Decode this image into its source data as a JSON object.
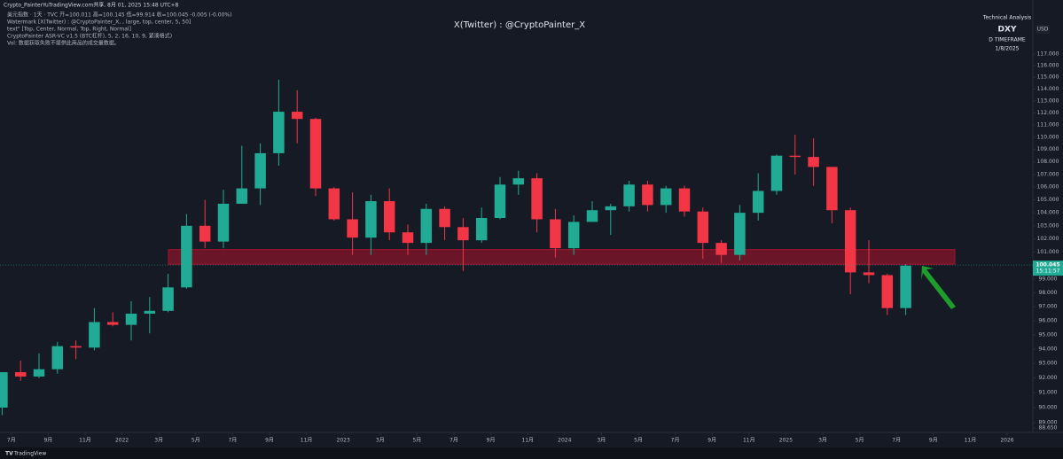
{
  "chart_data": {
    "type": "candlestick",
    "header": "Crypto_PainterYuTradingView.com共享, 8月 01, 2025 15:48 UTC+8",
    "legend_lines": [
      "美元指数 · 1天 · TVC  开=100.011 高=100.145 低=99.914 收=100.045 -0.005 (-0.00%)",
      "Watermark [X(Twitter) : @CryptoPainter_X, , large, top, center, 5, 50]",
      "text\" [Top, Center, Normal, Top, Right, Normal]",
      "CryptoPainter ASR-VC v1.5 (BTC杠杆), 5, 2, 16, 10, 9, 紧凑格式)",
      "Vol: 数据获取失败不提供此商品的成交量数据。"
    ],
    "watermark": "X(Twitter) : @CryptoPainter_X",
    "info_box": [
      "Technical Analysis",
      "DXY",
      "D TIMEFRAME",
      "1/8/2025"
    ],
    "currency": "USD",
    "last_price": {
      "value": 100.045,
      "label": "100.045"
    },
    "countdown": "15:11:57",
    "brand": "TradingView",
    "up_color": "#22ab94",
    "down_color": "#f23645",
    "zone": {
      "from": 100.1,
      "to": 101.2,
      "color": "#a3142c"
    },
    "log_scale": true,
    "grid": false,
    "categories": [
      "2021-06",
      "2021-07",
      "2021-08",
      "2021-09",
      "2021-10",
      "2021-11",
      "2021-12",
      "2022-01",
      "2022-02",
      "2022-03",
      "2022-04",
      "2022-05",
      "2022-06",
      "2022-07",
      "2022-08",
      "2022-09",
      "2022-10",
      "2022-11",
      "2022-12",
      "2023-01",
      "2023-02",
      "2023-03",
      "2023-04",
      "2023-05",
      "2023-06",
      "2023-07",
      "2023-08",
      "2023-09",
      "2023-10",
      "2023-11",
      "2023-12",
      "2024-01",
      "2024-02",
      "2024-03",
      "2024-04",
      "2024-05",
      "2024-06",
      "2024-07",
      "2024-08",
      "2024-09",
      "2024-10",
      "2024-11",
      "2024-12",
      "2025-01",
      "2025-02",
      "2025-03",
      "2025-04",
      "2025-05",
      "2025-06",
      "2025-07"
    ],
    "open": [
      90.0,
      92.4,
      92.1,
      92.6,
      94.2,
      94.1,
      95.9,
      95.7,
      96.5,
      96.7,
      98.4,
      103.0,
      101.8,
      104.7,
      105.9,
      108.7,
      112.1,
      111.5,
      105.9,
      103.5,
      102.1,
      104.9,
      102.5,
      101.7,
      104.3,
      102.9,
      101.9,
      103.6,
      106.2,
      106.7,
      103.5,
      101.3,
      103.3,
      104.2,
      104.5,
      106.2,
      104.6,
      105.9,
      104.1,
      101.7,
      100.8,
      104.0,
      105.7,
      108.5,
      108.4,
      107.6,
      104.2,
      99.5,
      99.3,
      96.9
    ],
    "high": [
      92.4,
      93.2,
      93.7,
      94.5,
      94.6,
      96.9,
      96.6,
      97.4,
      97.7,
      99.4,
      103.9,
      105.0,
      105.8,
      109.3,
      109.5,
      114.8,
      113.9,
      111.6,
      106.0,
      105.6,
      105.4,
      105.9,
      103.1,
      104.7,
      104.5,
      103.6,
      104.4,
      106.8,
      107.3,
      107.1,
      104.3,
      103.8,
      104.9,
      104.7,
      106.5,
      106.5,
      106.1,
      106.1,
      104.4,
      101.9,
      104.6,
      107.1,
      108.6,
      110.2,
      109.9,
      107.6,
      104.4,
      101.9,
      99.4,
      100.1
    ],
    "low": [
      89.5,
      91.8,
      92.0,
      92.3,
      93.3,
      93.9,
      95.6,
      94.6,
      95.1,
      96.6,
      98.3,
      101.3,
      101.3,
      104.7,
      104.6,
      107.7,
      109.5,
      105.3,
      103.4,
      100.8,
      100.8,
      101.9,
      100.8,
      100.8,
      101.9,
      99.6,
      101.7,
      103.5,
      105.4,
      102.5,
      100.6,
      100.8,
      103.3,
      102.3,
      104.1,
      104.1,
      104.0,
      103.7,
      100.5,
      100.2,
      100.4,
      103.4,
      105.4,
      107.0,
      106.1,
      103.2,
      97.9,
      98.7,
      96.4,
      96.4
    ],
    "close": [
      92.4,
      92.1,
      92.6,
      94.2,
      94.1,
      95.9,
      95.7,
      96.5,
      96.7,
      98.4,
      103.0,
      101.8,
      104.7,
      105.9,
      108.7,
      112.1,
      111.5,
      105.9,
      103.5,
      102.1,
      104.9,
      102.5,
      101.7,
      104.3,
      102.9,
      101.9,
      103.6,
      106.2,
      106.7,
      103.5,
      101.3,
      103.3,
      104.2,
      104.5,
      106.2,
      104.6,
      105.9,
      104.1,
      101.7,
      100.8,
      104.0,
      105.7,
      108.5,
      108.4,
      107.6,
      104.2,
      99.5,
      99.3,
      96.9,
      100.0
    ],
    "ylim": [
      88.65,
      117
    ],
    "yticks": [
      {
        "value": 117,
        "label": "117.000"
      },
      {
        "value": 116,
        "label": "116.000"
      },
      {
        "value": 115,
        "label": "115.000"
      },
      {
        "value": 114,
        "label": "114.000"
      },
      {
        "value": 113,
        "label": "113.000"
      },
      {
        "value": 112,
        "label": "112.000"
      },
      {
        "value": 111,
        "label": "111.000"
      },
      {
        "value": 110,
        "label": "110.000"
      },
      {
        "value": 109,
        "label": "109.000"
      },
      {
        "value": 108,
        "label": "108.000"
      },
      {
        "value": 107,
        "label": "107.000"
      },
      {
        "value": 106,
        "label": "106.000"
      },
      {
        "value": 105,
        "label": "105.000"
      },
      {
        "value": 104,
        "label": "104.000"
      },
      {
        "value": 103,
        "label": "103.000"
      },
      {
        "value": 102,
        "label": "102.000"
      },
      {
        "value": 101,
        "label": "101.000"
      },
      {
        "value": 99,
        "label": "99.000"
      },
      {
        "value": 98,
        "label": "98.000"
      },
      {
        "value": 97,
        "label": "97.000"
      },
      {
        "value": 96,
        "label": "96.000"
      },
      {
        "value": 95,
        "label": "95.000"
      },
      {
        "value": 94,
        "label": "94.000"
      },
      {
        "value": 93,
        "label": "93.000"
      },
      {
        "value": 92,
        "label": "92.000"
      },
      {
        "value": 91,
        "label": "91.000"
      },
      {
        "value": 90,
        "label": "90.000"
      },
      {
        "value": 89,
        "label": "89.000"
      },
      {
        "value": 88.65,
        "label": "88.650"
      }
    ],
    "xticks": [
      {
        "value": "2021-07",
        "label": "7月"
      },
      {
        "value": "2021-09",
        "label": "9月"
      },
      {
        "value": "2021-11",
        "label": "11月"
      },
      {
        "value": "2022-01",
        "label": "2022"
      },
      {
        "value": "2022-03",
        "label": "3月"
      },
      {
        "value": "2022-05",
        "label": "5月"
      },
      {
        "value": "2022-07",
        "label": "7月"
      },
      {
        "value": "2022-09",
        "label": "9月"
      },
      {
        "value": "2022-11",
        "label": "11月"
      },
      {
        "value": "2023-01",
        "label": "2023"
      },
      {
        "value": "2023-03",
        "label": "3月"
      },
      {
        "value": "2023-05",
        "label": "5月"
      },
      {
        "value": "2023-07",
        "label": "7月"
      },
      {
        "value": "2023-09",
        "label": "9月"
      },
      {
        "value": "2023-11",
        "label": "11月"
      },
      {
        "value": "2024-01",
        "label": "2024"
      },
      {
        "value": "2024-03",
        "label": "3月"
      },
      {
        "value": "2024-05",
        "label": "5月"
      },
      {
        "value": "2024-07",
        "label": "7月"
      },
      {
        "value": "2024-09",
        "label": "9月"
      },
      {
        "value": "2024-11",
        "label": "11月"
      },
      {
        "value": "2025-01",
        "label": "2025"
      },
      {
        "value": "2025-03",
        "label": "3月"
      },
      {
        "value": "2025-05",
        "label": "5月"
      },
      {
        "value": "2025-07",
        "label": "7月"
      },
      {
        "value": "2025-09",
        "label": "9月"
      },
      {
        "value": "2025-11",
        "label": "11月"
      },
      {
        "value": "2026-01",
        "label": "2026"
      }
    ]
  }
}
